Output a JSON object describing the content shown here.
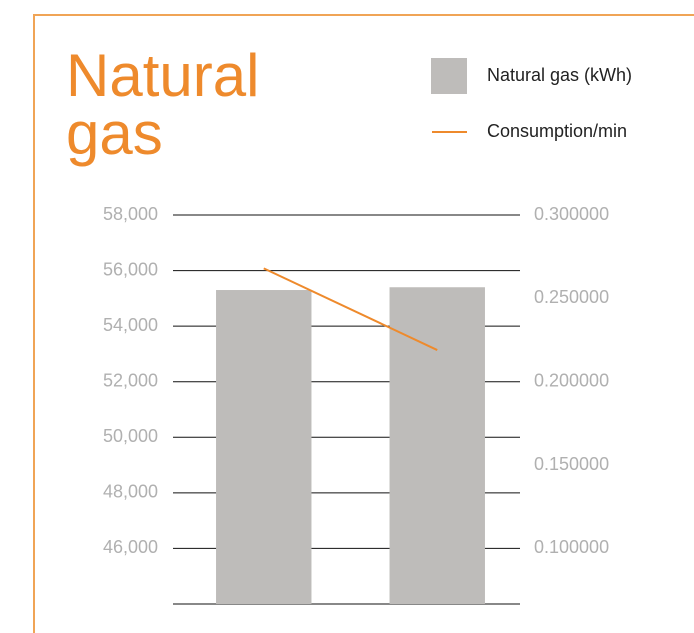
{
  "chart_data": {
    "type": "bar+line",
    "title": [
      "Natural",
      "gas"
    ],
    "categories": [
      null,
      null
    ],
    "series": [
      {
        "name": "Natural gas (kWh)",
        "type": "bar",
        "color": "#bebcba",
        "values": [
          55300,
          55400
        ]
      },
      {
        "name": "Consumption/min",
        "type": "line",
        "axis": "y2",
        "color": "#ee8a2c",
        "values": [
          0.268,
          0.219
        ]
      }
    ],
    "ylim": [
      44000,
      58000
    ],
    "yticks": [
      {
        "value": 46000,
        "label": "46,000"
      },
      {
        "value": 48000,
        "label": "48,000"
      },
      {
        "value": 50000,
        "label": "50,000"
      },
      {
        "value": 52000,
        "label": "52,000"
      },
      {
        "value": 54000,
        "label": "54,000"
      },
      {
        "value": 56000,
        "label": "56,000"
      },
      {
        "value": 58000,
        "label": "58,000"
      }
    ],
    "y2lim": [
      0.0667,
      0.3
    ],
    "y2ticks": [
      {
        "value": 0.1,
        "label": "0.100000"
      },
      {
        "value": 0.15,
        "label": "0.150000"
      },
      {
        "value": 0.2,
        "label": "0.200000"
      },
      {
        "value": 0.25,
        "label": "0.250000"
      },
      {
        "value": 0.3,
        "label": "0.300000"
      }
    ],
    "grid": true
  }
}
